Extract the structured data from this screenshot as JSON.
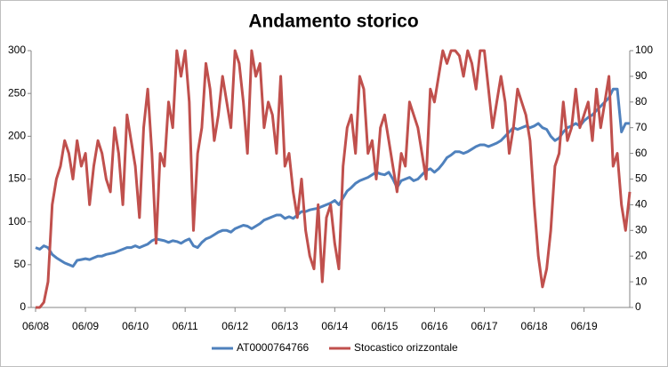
{
  "chart_data": {
    "type": "line",
    "title": "Andamento storico",
    "categories": [
      "06/08",
      null,
      null,
      null,
      null,
      null,
      null,
      null,
      null,
      null,
      null,
      null,
      "06/09",
      null,
      null,
      null,
      null,
      null,
      null,
      null,
      null,
      null,
      null,
      null,
      "06/10",
      null,
      null,
      null,
      null,
      null,
      null,
      null,
      null,
      null,
      null,
      null,
      "06/11",
      null,
      null,
      null,
      null,
      null,
      null,
      null,
      null,
      null,
      null,
      null,
      "06/12",
      null,
      null,
      null,
      null,
      null,
      null,
      null,
      null,
      null,
      null,
      null,
      "06/13",
      null,
      null,
      null,
      null,
      null,
      null,
      null,
      null,
      null,
      null,
      null,
      "06/14",
      null,
      null,
      null,
      null,
      null,
      null,
      null,
      null,
      null,
      null,
      null,
      "06/15",
      null,
      null,
      null,
      null,
      null,
      null,
      null,
      null,
      null,
      null,
      null,
      "06/16",
      null,
      null,
      null,
      null,
      null,
      null,
      null,
      null,
      null,
      null,
      null,
      "06/17",
      null,
      null,
      null,
      null,
      null,
      null,
      null,
      null,
      null,
      null,
      null,
      "06/18",
      null,
      null,
      null,
      null,
      null,
      null,
      null,
      null,
      null,
      null,
      null,
      "06/19",
      null,
      null,
      null,
      null,
      null,
      null,
      null,
      null,
      null,
      null,
      null
    ],
    "series": [
      {
        "name": "AT0000764766",
        "color": "#4f81bd",
        "values": [
          70,
          68,
          72,
          70,
          62,
          58,
          55,
          52,
          50,
          48,
          55,
          56,
          57,
          56,
          58,
          60,
          60,
          62,
          63,
          64,
          66,
          68,
          70,
          70,
          72,
          70,
          72,
          74,
          78,
          80,
          79,
          78,
          76,
          78,
          77,
          75,
          78,
          80,
          72,
          70,
          76,
          80,
          82,
          85,
          88,
          90,
          90,
          88,
          92,
          94,
          96,
          95,
          92,
          95,
          98,
          102,
          104,
          106,
          108,
          108,
          104,
          106,
          104,
          108,
          112,
          112,
          114,
          115,
          116,
          118,
          120,
          122,
          125,
          120,
          128,
          136,
          140,
          145,
          148,
          150,
          152,
          155,
          158,
          156,
          155,
          158,
          150,
          140,
          148,
          150,
          152,
          148,
          150,
          155,
          160,
          162,
          158,
          162,
          168,
          175,
          178,
          182,
          182,
          180,
          182,
          185,
          188,
          190,
          190,
          188,
          190,
          192,
          195,
          200,
          205,
          210,
          208,
          210,
          212,
          210,
          212,
          215,
          210,
          208,
          200,
          195,
          198,
          205,
          210,
          212,
          215,
          212,
          218,
          222,
          225,
          230,
          235,
          240,
          245,
          255,
          255,
          205,
          215,
          215
        ]
      },
      {
        "name": "Stocastico orizzontale",
        "color": "#c0504d",
        "axis": "y2",
        "values": [
          0,
          0,
          2,
          10,
          40,
          50,
          55,
          65,
          60,
          50,
          65,
          55,
          60,
          40,
          55,
          65,
          60,
          50,
          45,
          70,
          60,
          40,
          75,
          65,
          55,
          35,
          70,
          85,
          60,
          25,
          60,
          55,
          80,
          70,
          100,
          90,
          100,
          80,
          30,
          60,
          70,
          95,
          85,
          65,
          75,
          90,
          80,
          70,
          100,
          95,
          80,
          60,
          100,
          90,
          95,
          70,
          80,
          75,
          60,
          90,
          55,
          60,
          45,
          35,
          50,
          30,
          20,
          15,
          40,
          10,
          35,
          40,
          25,
          15,
          55,
          70,
          75,
          60,
          90,
          85,
          60,
          65,
          50,
          70,
          75,
          65,
          55,
          45,
          60,
          55,
          80,
          75,
          70,
          60,
          50,
          85,
          80,
          90,
          100,
          95,
          100,
          100,
          98,
          90,
          100,
          95,
          85,
          100,
          100,
          85,
          70,
          80,
          90,
          80,
          60,
          70,
          85,
          80,
          75,
          65,
          40,
          20,
          8,
          15,
          30,
          55,
          60,
          80,
          65,
          70,
          85,
          70,
          75,
          80,
          65,
          85,
          70,
          80,
          90,
          55,
          60,
          40,
          30,
          45
        ]
      }
    ],
    "ylim": [
      0,
      300
    ],
    "yticks": [
      0,
      50,
      100,
      150,
      200,
      250,
      300
    ],
    "y2lim": [
      0,
      100
    ],
    "y2ticks": [
      0,
      10,
      20,
      30,
      40,
      50,
      60,
      70,
      80,
      90,
      100
    ],
    "grid": false,
    "legend": "bottom"
  }
}
